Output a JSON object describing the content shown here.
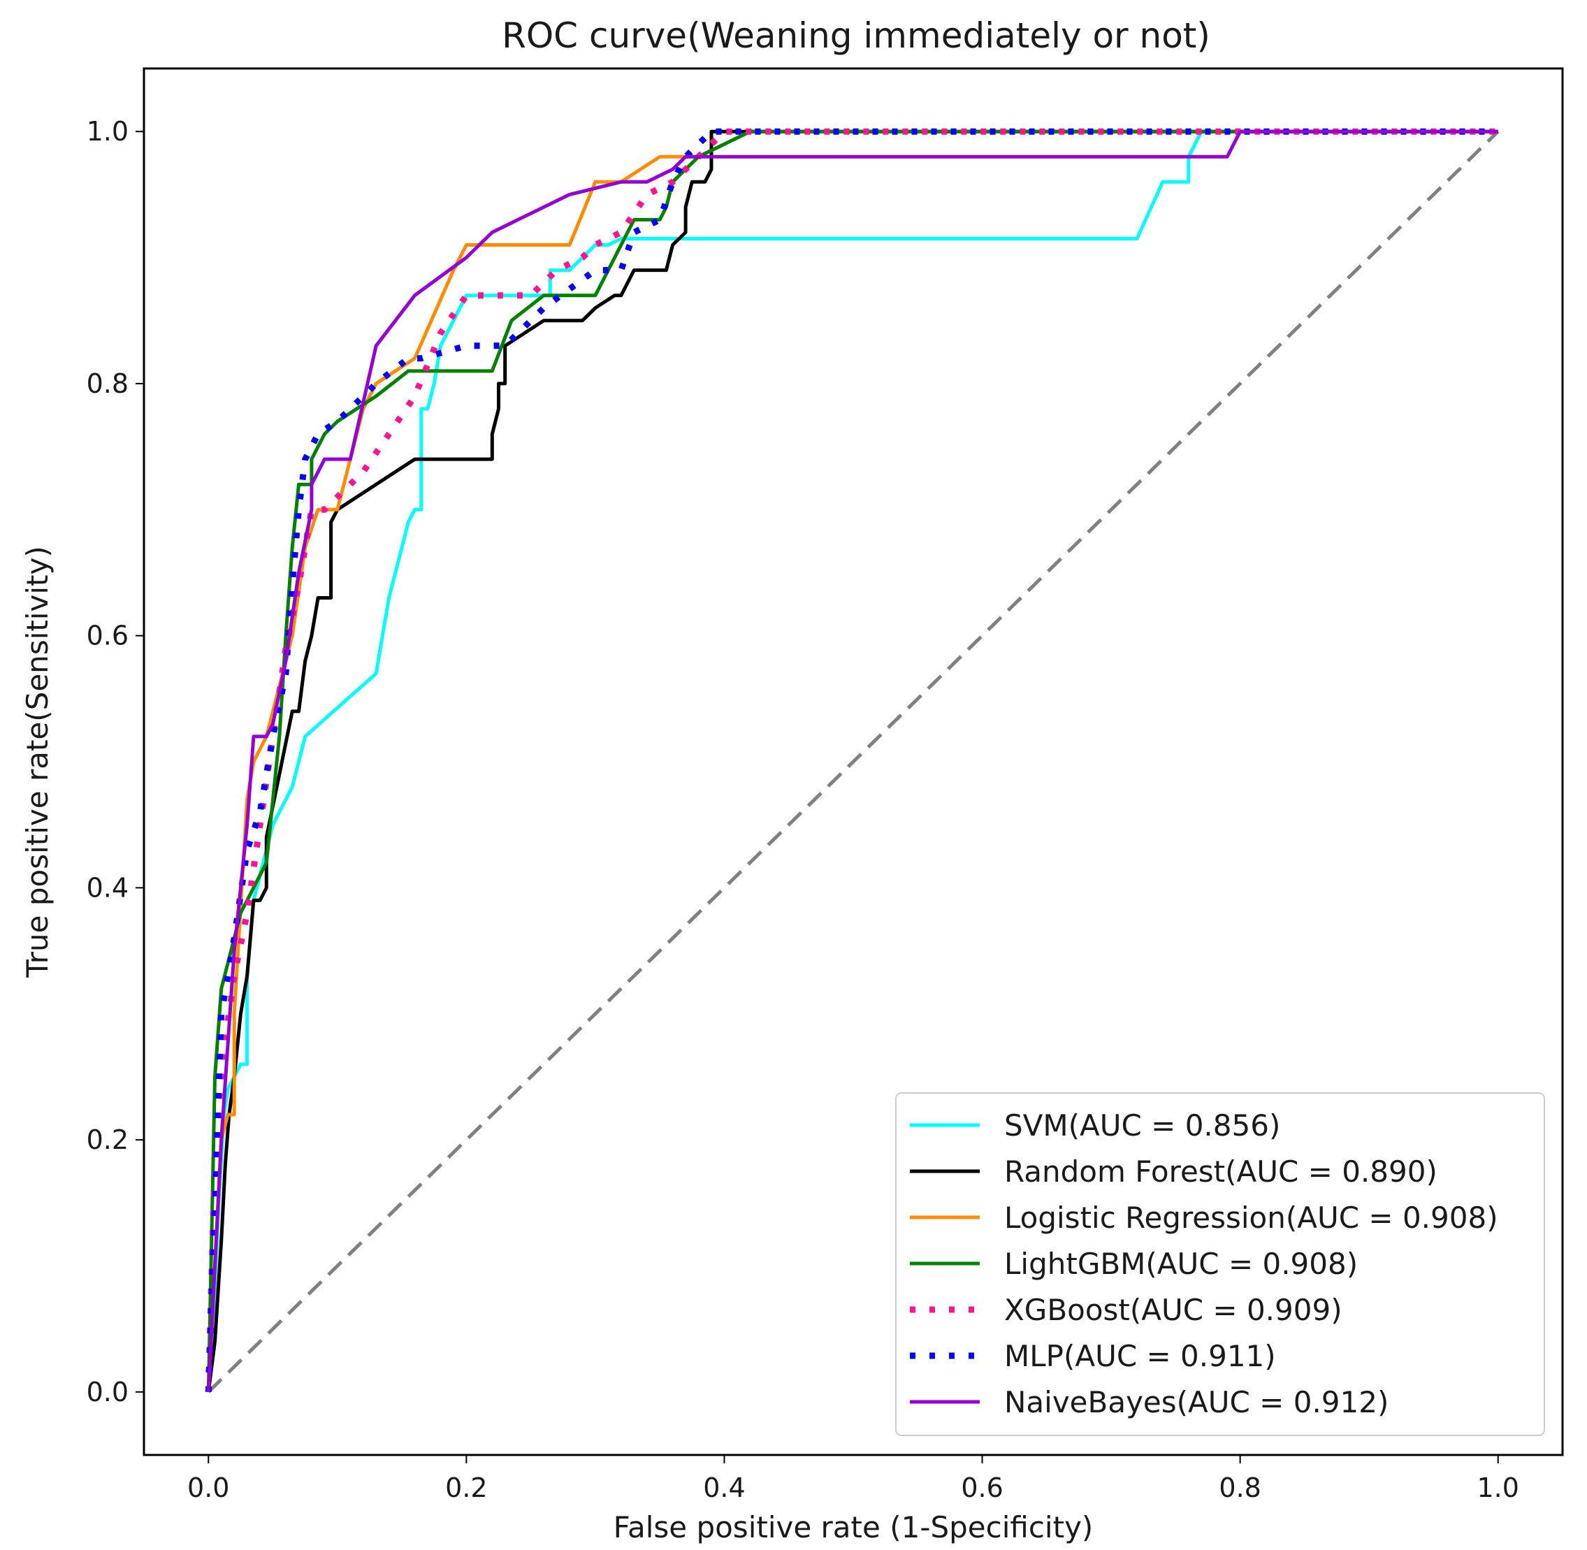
{
  "chart_data": {
    "type": "line",
    "title": "ROC curve(Weaning immediately or not)",
    "xlabel": "False positive rate (1-Specificity)",
    "ylabel": "True positive rate(Sensitivity)",
    "xlim": [
      -0.05,
      1.05
    ],
    "ylim": [
      -0.05,
      1.05
    ],
    "xticks": [
      0.0,
      0.2,
      0.4,
      0.6,
      0.8,
      1.0
    ],
    "yticks": [
      0.0,
      0.2,
      0.4,
      0.6,
      0.8,
      1.0
    ],
    "xtick_labels": [
      "0.0",
      "0.2",
      "0.4",
      "0.6",
      "0.8",
      "1.0"
    ],
    "ytick_labels": [
      "0.0",
      "0.2",
      "0.4",
      "0.6",
      "0.8",
      "1.0"
    ],
    "legend_position": "lower-right",
    "diagonal": {
      "name": "chance",
      "color": "#808080",
      "x": [
        0,
        1
      ],
      "y": [
        0,
        1
      ]
    },
    "series": [
      {
        "name": "SVM(AUC = 0.856)",
        "color": "#00FFFF",
        "style": "solid",
        "x": [
          0,
          0.004,
          0.008,
          0.012,
          0.015,
          0.02,
          0.025,
          0.03,
          0.03,
          0.035,
          0.04,
          0.045,
          0.05,
          0.055,
          0.055,
          0.065,
          0.07,
          0.075,
          0.13,
          0.135,
          0.14,
          0.15,
          0.155,
          0.16,
          0.165,
          0.165,
          0.17,
          0.175,
          0.18,
          0.2,
          0.22,
          0.25,
          0.265,
          0.265,
          0.28,
          0.3,
          0.31,
          0.32,
          0.7,
          0.72,
          0.74,
          0.76,
          0.76,
          0.77,
          0.8,
          1.0
        ],
        "y": [
          0,
          0.06,
          0.15,
          0.22,
          0.24,
          0.25,
          0.26,
          0.26,
          0.33,
          0.39,
          0.41,
          0.43,
          0.45,
          0.46,
          0.46,
          0.48,
          0.5,
          0.52,
          0.57,
          0.6,
          0.63,
          0.67,
          0.69,
          0.7,
          0.7,
          0.78,
          0.78,
          0.8,
          0.83,
          0.87,
          0.87,
          0.87,
          0.87,
          0.89,
          0.89,
          0.91,
          0.91,
          0.915,
          0.915,
          0.915,
          0.96,
          0.96,
          0.98,
          1.0,
          1.0,
          1.0
        ]
      },
      {
        "name": "Random Forest(AUC = 0.890)",
        "color": "#000000",
        "style": "solid",
        "x": [
          0,
          0.005,
          0.01,
          0.013,
          0.016,
          0.02,
          0.025,
          0.03,
          0.03,
          0.035,
          0.04,
          0.045,
          0.045,
          0.055,
          0.065,
          0.07,
          0.075,
          0.08,
          0.085,
          0.09,
          0.095,
          0.095,
          0.1,
          0.16,
          0.22,
          0.22,
          0.225,
          0.225,
          0.23,
          0.23,
          0.245,
          0.26,
          0.28,
          0.29,
          0.3,
          0.315,
          0.32,
          0.33,
          0.35,
          0.355,
          0.36,
          0.37,
          0.37,
          0.375,
          0.385,
          0.39,
          0.39,
          0.405,
          0.41,
          0.42,
          1.0
        ],
        "y": [
          0,
          0.04,
          0.12,
          0.18,
          0.22,
          0.25,
          0.3,
          0.33,
          0.33,
          0.39,
          0.39,
          0.4,
          0.44,
          0.49,
          0.54,
          0.54,
          0.58,
          0.6,
          0.63,
          0.63,
          0.63,
          0.69,
          0.7,
          0.74,
          0.74,
          0.76,
          0.78,
          0.8,
          0.8,
          0.83,
          0.84,
          0.85,
          0.85,
          0.85,
          0.86,
          0.87,
          0.87,
          0.89,
          0.89,
          0.89,
          0.91,
          0.92,
          0.94,
          0.96,
          0.96,
          0.97,
          1.0,
          1.0,
          1.0,
          1.0,
          1.0
        ]
      },
      {
        "name": "Logistic Regression(AUC = 0.908)",
        "color": "#FF8C00",
        "style": "solid",
        "x": [
          0,
          0.005,
          0.01,
          0.015,
          0.02,
          0.02,
          0.03,
          0.035,
          0.045,
          0.055,
          0.065,
          0.075,
          0.085,
          0.1,
          0.12,
          0.13,
          0.16,
          0.19,
          0.2,
          0.2,
          0.28,
          0.3,
          0.32,
          0.35,
          0.36,
          0.38,
          0.42,
          1.0
        ],
        "y": [
          0,
          0.1,
          0.2,
          0.22,
          0.22,
          0.3,
          0.47,
          0.5,
          0.52,
          0.56,
          0.6,
          0.67,
          0.7,
          0.7,
          0.78,
          0.8,
          0.82,
          0.89,
          0.91,
          0.91,
          0.91,
          0.96,
          0.96,
          0.98,
          0.98,
          0.98,
          1.0,
          1.0
        ]
      },
      {
        "name": "LightGBM(AUC = 0.908)",
        "color": "#008000",
        "style": "solid",
        "x": [
          0,
          0.005,
          0.01,
          0.015,
          0.02,
          0.025,
          0.035,
          0.045,
          0.05,
          0.055,
          0.06,
          0.065,
          0.07,
          0.07,
          0.08,
          0.08,
          0.09,
          0.1,
          0.13,
          0.155,
          0.165,
          0.22,
          0.235,
          0.26,
          0.3,
          0.31,
          0.32,
          0.33,
          0.35,
          0.355,
          0.36,
          0.38,
          0.42,
          1.0
        ],
        "y": [
          0,
          0.25,
          0.32,
          0.34,
          0.36,
          0.38,
          0.4,
          0.42,
          0.47,
          0.52,
          0.6,
          0.67,
          0.72,
          0.72,
          0.72,
          0.74,
          0.76,
          0.77,
          0.79,
          0.81,
          0.81,
          0.81,
          0.85,
          0.87,
          0.87,
          0.89,
          0.91,
          0.93,
          0.93,
          0.94,
          0.96,
          0.98,
          1.0,
          1.0
        ]
      },
      {
        "name": "XGBoost(AUC = 0.909)",
        "color": "#FF1493",
        "style": "dotted",
        "x": [
          0,
          0.004,
          0.008,
          0.012,
          0.016,
          0.02,
          0.03,
          0.04,
          0.05,
          0.06,
          0.07,
          0.08,
          0.09,
          0.1,
          0.12,
          0.14,
          0.16,
          0.18,
          0.2,
          0.24,
          0.25,
          0.27,
          0.29,
          0.3,
          0.32,
          0.34,
          0.36,
          0.38,
          0.4,
          0.42,
          1.0
        ],
        "y": [
          0,
          0.15,
          0.23,
          0.28,
          0.3,
          0.33,
          0.38,
          0.45,
          0.52,
          0.59,
          0.64,
          0.7,
          0.7,
          0.71,
          0.73,
          0.76,
          0.79,
          0.84,
          0.87,
          0.87,
          0.87,
          0.89,
          0.9,
          0.91,
          0.92,
          0.95,
          0.96,
          0.98,
          1.0,
          1.0,
          1.0
        ]
      },
      {
        "name": "MLP(AUC = 0.911)",
        "color": "#0000FF",
        "style": "dotted",
        "x": [
          0,
          0.005,
          0.01,
          0.02,
          0.03,
          0.04,
          0.05,
          0.06,
          0.065,
          0.07,
          0.075,
          0.085,
          0.1,
          0.13,
          0.155,
          0.165,
          0.2,
          0.22,
          0.23,
          0.26,
          0.3,
          0.32,
          0.33,
          0.35,
          0.36,
          0.37,
          0.39,
          0.42,
          1.0
        ],
        "y": [
          0,
          0.15,
          0.3,
          0.36,
          0.43,
          0.46,
          0.52,
          0.57,
          0.64,
          0.7,
          0.74,
          0.76,
          0.77,
          0.8,
          0.82,
          0.82,
          0.83,
          0.83,
          0.83,
          0.86,
          0.89,
          0.89,
          0.92,
          0.93,
          0.96,
          0.98,
          1.0,
          1.0,
          1.0
        ]
      },
      {
        "name": "NaiveBayes(AUC = 0.912)",
        "color": "#9400D3",
        "style": "solid",
        "x": [
          0,
          0.005,
          0.01,
          0.02,
          0.03,
          0.035,
          0.04,
          0.045,
          0.05,
          0.06,
          0.07,
          0.08,
          0.08,
          0.09,
          0.1,
          0.11,
          0.13,
          0.16,
          0.2,
          0.22,
          0.24,
          0.26,
          0.28,
          0.32,
          0.34,
          0.36,
          0.37,
          0.42,
          0.79,
          0.8,
          0.81,
          1.0
        ],
        "y": [
          0,
          0.1,
          0.2,
          0.35,
          0.45,
          0.52,
          0.52,
          0.52,
          0.53,
          0.58,
          0.65,
          0.7,
          0.72,
          0.74,
          0.74,
          0.74,
          0.83,
          0.87,
          0.9,
          0.92,
          0.93,
          0.94,
          0.95,
          0.96,
          0.96,
          0.97,
          0.98,
          0.98,
          0.98,
          1.0,
          1.0,
          1.0
        ]
      }
    ]
  }
}
